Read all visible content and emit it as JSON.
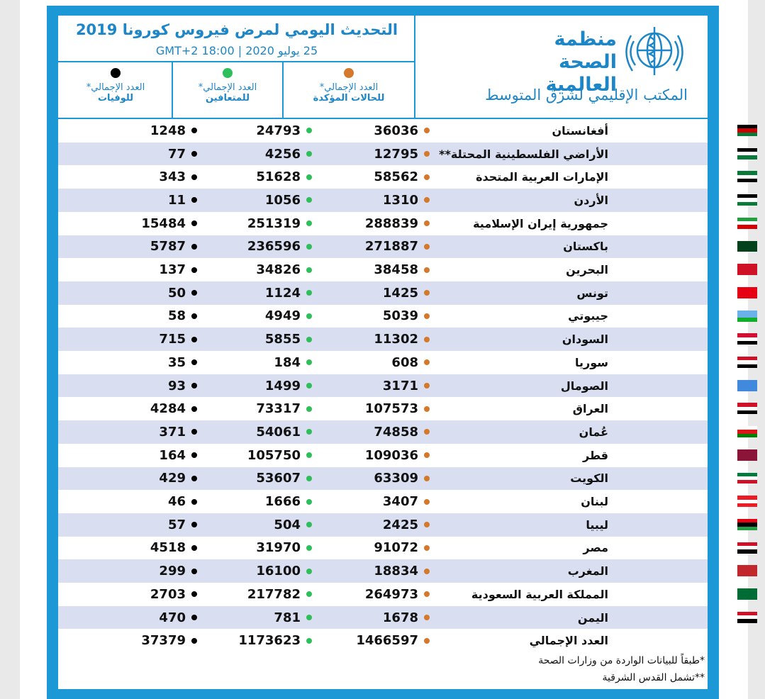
{
  "header": {
    "title": "التحديث اليومي لمرض فيروس كورونا 2019",
    "date": "25 يوليو 2020 | GMT+2 18:00",
    "org_name_line1": "منظمة",
    "org_name_line2": "الصحة العالمية",
    "org_sub": "المكتب الإقليمي لشرق المتوسط"
  },
  "columns": {
    "confirmed": {
      "line1": "العدد الإجمالي*",
      "line2": "للحالات المؤكدة",
      "color": "#d4782b"
    },
    "recovered": {
      "line1": "العدد الإجمالي*",
      "line2": "للمتعافين",
      "color": "#2fbf5a"
    },
    "deaths": {
      "line1": "العدد الإجمالي*",
      "line2": "للوفيات",
      "color": "#000000"
    }
  },
  "rows": [
    {
      "country": "أفغانستان",
      "confirmed": "36036",
      "recovered": "24793",
      "deaths": "1248",
      "flag": "afghanistan-flag-icon"
    },
    {
      "country": "الأراضي الفلسطينية المحتلة**",
      "confirmed": "12795",
      "recovered": "4256",
      "deaths": "77",
      "flag": "palestine-flag-icon"
    },
    {
      "country": "الإمارات العربية المتحدة",
      "confirmed": "58562",
      "recovered": "51628",
      "deaths": "343",
      "flag": "uae-flag-icon"
    },
    {
      "country": "الأردن",
      "confirmed": "1310",
      "recovered": "1056",
      "deaths": "11",
      "flag": "jordan-flag-icon"
    },
    {
      "country": "جمهورية إيران الإسلامية",
      "confirmed": "288839",
      "recovered": "251319",
      "deaths": "15484",
      "flag": "iran-flag-icon"
    },
    {
      "country": "باكستان",
      "confirmed": "271887",
      "recovered": "236596",
      "deaths": "5787",
      "flag": "pakistan-flag-icon"
    },
    {
      "country": "البحرين",
      "confirmed": "38458",
      "recovered": "34826",
      "deaths": "137",
      "flag": "bahrain-flag-icon"
    },
    {
      "country": "تونس",
      "confirmed": "1425",
      "recovered": "1124",
      "deaths": "50",
      "flag": "tunisia-flag-icon"
    },
    {
      "country": "جيبوتي",
      "confirmed": "5039",
      "recovered": "4949",
      "deaths": "58",
      "flag": "djibouti-flag-icon"
    },
    {
      "country": "السودان",
      "confirmed": "11302",
      "recovered": "5855",
      "deaths": "715",
      "flag": "sudan-flag-icon"
    },
    {
      "country": "سوريا",
      "confirmed": "608",
      "recovered": "184",
      "deaths": "35",
      "flag": "syria-flag-icon"
    },
    {
      "country": "الصومال",
      "confirmed": "3171",
      "recovered": "1499",
      "deaths": "93",
      "flag": "somalia-flag-icon"
    },
    {
      "country": "العراق",
      "confirmed": "107573",
      "recovered": "73317",
      "deaths": "4284",
      "flag": "iraq-flag-icon"
    },
    {
      "country": "عُمان",
      "confirmed": "74858",
      "recovered": "54061",
      "deaths": "371",
      "flag": "oman-flag-icon"
    },
    {
      "country": "قطر",
      "confirmed": "109036",
      "recovered": "105750",
      "deaths": "164",
      "flag": "qatar-flag-icon"
    },
    {
      "country": "الكويت",
      "confirmed": "63309",
      "recovered": "53607",
      "deaths": "429",
      "flag": "kuwait-flag-icon"
    },
    {
      "country": "لبنان",
      "confirmed": "3407",
      "recovered": "1666",
      "deaths": "46",
      "flag": "lebanon-flag-icon"
    },
    {
      "country": "ليبيا",
      "confirmed": "2425",
      "recovered": "504",
      "deaths": "57",
      "flag": "libya-flag-icon"
    },
    {
      "country": "مصر",
      "confirmed": "91072",
      "recovered": "31970",
      "deaths": "4518",
      "flag": "egypt-flag-icon"
    },
    {
      "country": "المغرب",
      "confirmed": "18834",
      "recovered": "16100",
      "deaths": "299",
      "flag": "morocco-flag-icon"
    },
    {
      "country": "المملكة العربية السعودية",
      "confirmed": "264973",
      "recovered": "217782",
      "deaths": "2703",
      "flag": "saudi-flag-icon"
    },
    {
      "country": "اليمن",
      "confirmed": "1678",
      "recovered": "781",
      "deaths": "470",
      "flag": "yemen-flag-icon"
    }
  ],
  "total": {
    "label": "العدد الإجمالي",
    "confirmed": "1466597",
    "recovered": "1173623",
    "deaths": "37379"
  },
  "footnotes": {
    "note1": "*طبقاً للبيانات الواردة من وزارات الصحة",
    "note2": "**تشمل القدس الشرقية"
  }
}
